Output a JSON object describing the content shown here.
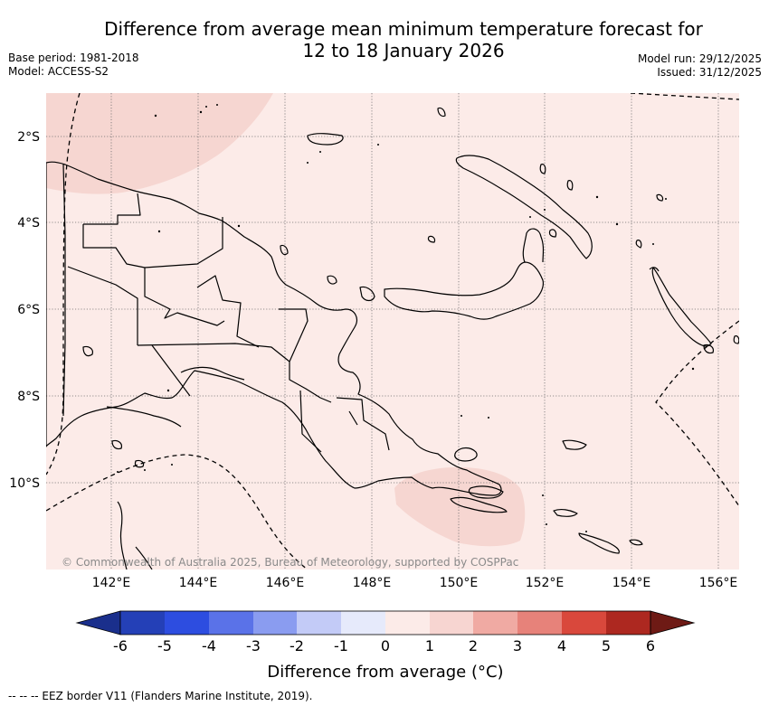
{
  "header": {
    "title_line1": "Difference from average mean minimum temperature forecast for",
    "title_line2": "12 to 18 January 2026",
    "base_period": "Base period: 1981-2018",
    "model": "Model: ACCESS-S2",
    "model_run": "Model run: 29/12/2025",
    "issued": "Issued: 31/12/2025"
  },
  "map": {
    "region": "Papua New Guinea",
    "background_category": "0 to 1",
    "anomaly_patches": [
      {
        "name": "north-west",
        "category": "1 to 2"
      },
      {
        "name": "south-east",
        "category": "1 to 2"
      }
    ],
    "lon_ticks": [
      "142°E",
      "144°E",
      "146°E",
      "148°E",
      "150°E",
      "152°E",
      "154°E",
      "156°E"
    ],
    "lat_ticks": [
      "2°S",
      "4°S",
      "6°S",
      "8°S",
      "10°S"
    ],
    "credit": "© Commonwealth of Australia 2025, Bureau of Meteorology, supported by COSPPac"
  },
  "colorbar": {
    "title": "Difference from average (°C)",
    "labels": [
      "-6",
      "-5",
      "-4",
      "-3",
      "-2",
      "-1",
      "0",
      "1",
      "2",
      "3",
      "4",
      "5",
      "6"
    ],
    "colors": [
      "#1a2f8c",
      "#2440b7",
      "#2d4de0",
      "#5a72e8",
      "#8a9cf0",
      "#c3cbf7",
      "#e6eafb",
      "#fcebe8",
      "#f7d5d1",
      "#f0aaa3",
      "#e7827a",
      "#d9483c",
      "#ad2820",
      "#6e1a15"
    ]
  },
  "footnote": "--  --  -- EEZ border V11 (Flanders Marine Institute, 2019)."
}
